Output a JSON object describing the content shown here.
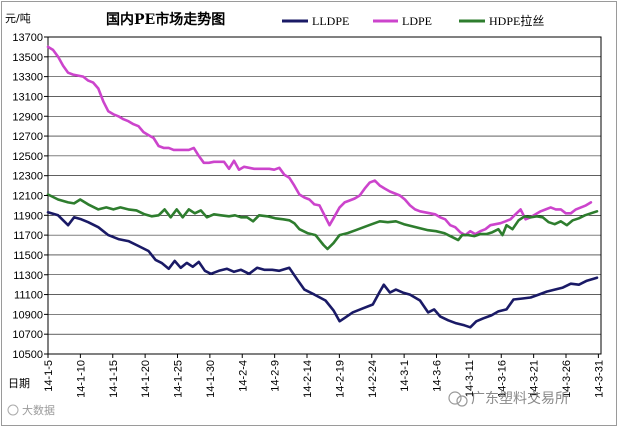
{
  "chart_data": {
    "type": "line",
    "title": "国内PE市场走势图",
    "ylabel": "元/吨",
    "xlabel": "日期",
    "ylim": [
      10500,
      13700
    ],
    "yticks": [
      10500,
      10700,
      10900,
      11100,
      11300,
      11500,
      11700,
      11900,
      12100,
      12300,
      12500,
      12700,
      12900,
      13100,
      13300,
      13500,
      13700
    ],
    "x_range": [
      0,
      55
    ],
    "xtick_labels": [
      "14-1-5",
      "14-1-10",
      "14-1-15",
      "14-1-20",
      "14-1-25",
      "14-1-30",
      "14-2-4",
      "14-2-9",
      "14-2-14",
      "14-2-19",
      "14-2-24",
      "14-3-1",
      "14-3-6",
      "14-3-11",
      "14-3-16",
      "14-3-21",
      "14-3-26",
      "14-3-31"
    ],
    "xtick_positions": [
      0,
      3.22,
      6.44,
      9.66,
      12.88,
      16.1,
      19.32,
      22.54,
      25.76,
      28.98,
      32.2,
      35.42,
      38.64,
      41.86,
      45.08,
      48.3,
      51.52,
      54.74
    ],
    "grid": true,
    "legend_position": "top",
    "series": [
      {
        "name": "LLDPE",
        "color": "#1a1a66",
        "points": [
          [
            0,
            11930
          ],
          [
            1,
            11900
          ],
          [
            2,
            11800
          ],
          [
            2.6,
            11880
          ],
          [
            3.3,
            11860
          ],
          [
            4,
            11830
          ],
          [
            5,
            11780
          ],
          [
            6,
            11700
          ],
          [
            7,
            11660
          ],
          [
            8,
            11640
          ],
          [
            9,
            11590
          ],
          [
            10,
            11540
          ],
          [
            10.7,
            11450
          ],
          [
            11.3,
            11420
          ],
          [
            12,
            11360
          ],
          [
            12.6,
            11440
          ],
          [
            13.2,
            11370
          ],
          [
            13.8,
            11420
          ],
          [
            14.4,
            11380
          ],
          [
            15,
            11430
          ],
          [
            15.6,
            11340
          ],
          [
            16.2,
            11310
          ],
          [
            17,
            11340
          ],
          [
            17.8,
            11360
          ],
          [
            18.5,
            11330
          ],
          [
            19.2,
            11350
          ],
          [
            20,
            11310
          ],
          [
            20.8,
            11370
          ],
          [
            21.5,
            11350
          ],
          [
            22.3,
            11350
          ],
          [
            23,
            11340
          ],
          [
            24,
            11370
          ],
          [
            24.8,
            11250
          ],
          [
            25.5,
            11150
          ],
          [
            26.5,
            11100
          ],
          [
            27.6,
            11040
          ],
          [
            28.4,
            10940
          ],
          [
            29,
            10830
          ],
          [
            29.6,
            10870
          ],
          [
            30.3,
            10920
          ],
          [
            31.3,
            10960
          ],
          [
            32.3,
            11000
          ],
          [
            33,
            11130
          ],
          [
            33.4,
            11200
          ],
          [
            34,
            11120
          ],
          [
            34.6,
            11150
          ],
          [
            35.3,
            11120
          ],
          [
            36,
            11100
          ],
          [
            37,
            11040
          ],
          [
            37.8,
            10920
          ],
          [
            38.4,
            10950
          ],
          [
            39,
            10880
          ],
          [
            39.8,
            10840
          ],
          [
            40.6,
            10810
          ],
          [
            41.4,
            10790
          ],
          [
            42,
            10770
          ],
          [
            42.6,
            10830
          ],
          [
            43.3,
            10860
          ],
          [
            44.1,
            10890
          ],
          [
            44.8,
            10930
          ],
          [
            45.6,
            10950
          ],
          [
            46.3,
            11050
          ],
          [
            47.2,
            11060
          ],
          [
            48,
            11070
          ],
          [
            48.8,
            11100
          ],
          [
            49.6,
            11130
          ],
          [
            50.4,
            11150
          ],
          [
            51.2,
            11170
          ],
          [
            52,
            11210
          ],
          [
            52.8,
            11200
          ],
          [
            53.6,
            11240
          ],
          [
            54.6,
            11270
          ]
        ]
      },
      {
        "name": "LDPE",
        "color": "#cc44cc",
        "points": [
          [
            0,
            13600
          ],
          [
            0.5,
            13570
          ],
          [
            1,
            13500
          ],
          [
            1.5,
            13410
          ],
          [
            2,
            13340
          ],
          [
            2.5,
            13320
          ],
          [
            3,
            13310
          ],
          [
            3.5,
            13300
          ],
          [
            4,
            13260
          ],
          [
            4.5,
            13240
          ],
          [
            5,
            13180
          ],
          [
            5.5,
            13050
          ],
          [
            6,
            12950
          ],
          [
            6.5,
            12920
          ],
          [
            7,
            12900
          ],
          [
            7.5,
            12870
          ],
          [
            8,
            12850
          ],
          [
            8.5,
            12820
          ],
          [
            9,
            12800
          ],
          [
            9.5,
            12740
          ],
          [
            10,
            12710
          ],
          [
            10.5,
            12680
          ],
          [
            11,
            12600
          ],
          [
            11.5,
            12580
          ],
          [
            12,
            12580
          ],
          [
            12.5,
            12560
          ],
          [
            13,
            12560
          ],
          [
            13.5,
            12560
          ],
          [
            14,
            12560
          ],
          [
            14.5,
            12580
          ],
          [
            15,
            12500
          ],
          [
            15.5,
            12430
          ],
          [
            16,
            12430
          ],
          [
            16.5,
            12440
          ],
          [
            17,
            12440
          ],
          [
            17.5,
            12440
          ],
          [
            18,
            12370
          ],
          [
            18.5,
            12450
          ],
          [
            19,
            12360
          ],
          [
            19.5,
            12390
          ],
          [
            20,
            12380
          ],
          [
            20.5,
            12370
          ],
          [
            21,
            12370
          ],
          [
            21.5,
            12370
          ],
          [
            22,
            12370
          ],
          [
            22.5,
            12360
          ],
          [
            23,
            12380
          ],
          [
            23.5,
            12310
          ],
          [
            24,
            12280
          ],
          [
            24.5,
            12200
          ],
          [
            25,
            12110
          ],
          [
            25.5,
            12080
          ],
          [
            26,
            12060
          ],
          [
            26.5,
            12010
          ],
          [
            27,
            12000
          ],
          [
            27.5,
            11900
          ],
          [
            28,
            11800
          ],
          [
            28.5,
            11890
          ],
          [
            29,
            11980
          ],
          [
            29.5,
            12030
          ],
          [
            30,
            12050
          ],
          [
            30.5,
            12070
          ],
          [
            31,
            12100
          ],
          [
            31.5,
            12170
          ],
          [
            32,
            12230
          ],
          [
            32.5,
            12250
          ],
          [
            33,
            12200
          ],
          [
            33.5,
            12170
          ],
          [
            34,
            12140
          ],
          [
            34.5,
            12120
          ],
          [
            35,
            12100
          ],
          [
            35.5,
            12060
          ],
          [
            36,
            12000
          ],
          [
            36.5,
            11960
          ],
          [
            37,
            11940
          ],
          [
            37.5,
            11930
          ],
          [
            38,
            11920
          ],
          [
            38.5,
            11910
          ],
          [
            39,
            11880
          ],
          [
            39.5,
            11860
          ],
          [
            40,
            11800
          ],
          [
            40.5,
            11780
          ],
          [
            41,
            11730
          ],
          [
            41.5,
            11700
          ],
          [
            42,
            11740
          ],
          [
            42.5,
            11710
          ],
          [
            43,
            11740
          ],
          [
            43.5,
            11760
          ],
          [
            44,
            11800
          ],
          [
            44.5,
            11810
          ],
          [
            45,
            11820
          ],
          [
            45.5,
            11840
          ],
          [
            46,
            11860
          ],
          [
            46.5,
            11910
          ],
          [
            47,
            11960
          ],
          [
            47.5,
            11860
          ],
          [
            48,
            11880
          ],
          [
            48.5,
            11910
          ],
          [
            49,
            11940
          ],
          [
            49.5,
            11960
          ],
          [
            50,
            11980
          ],
          [
            50.5,
            11960
          ],
          [
            51,
            11960
          ],
          [
            51.5,
            11920
          ],
          [
            52,
            11920
          ],
          [
            52.5,
            11960
          ],
          [
            53,
            11980
          ],
          [
            53.5,
            12000
          ],
          [
            54,
            12030
          ]
        ]
      },
      {
        "name": "HDPE拉丝",
        "color": "#2e7d2e",
        "points": [
          [
            0,
            12110
          ],
          [
            1,
            12060
          ],
          [
            2,
            12030
          ],
          [
            2.6,
            12020
          ],
          [
            3.2,
            12060
          ],
          [
            4,
            12010
          ],
          [
            5,
            11960
          ],
          [
            5.8,
            11980
          ],
          [
            6.5,
            11960
          ],
          [
            7.2,
            11980
          ],
          [
            8,
            11960
          ],
          [
            8.8,
            11950
          ],
          [
            9.6,
            11910
          ],
          [
            10.3,
            11890
          ],
          [
            11,
            11900
          ],
          [
            11.6,
            11960
          ],
          [
            12.2,
            11880
          ],
          [
            12.8,
            11960
          ],
          [
            13.4,
            11880
          ],
          [
            14,
            11960
          ],
          [
            14.6,
            11920
          ],
          [
            15.2,
            11950
          ],
          [
            15.8,
            11880
          ],
          [
            16.5,
            11910
          ],
          [
            17.2,
            11900
          ],
          [
            18,
            11890
          ],
          [
            18.6,
            11900
          ],
          [
            19.2,
            11880
          ],
          [
            19.8,
            11880
          ],
          [
            20.4,
            11840
          ],
          [
            21,
            11900
          ],
          [
            21.8,
            11890
          ],
          [
            22.6,
            11870
          ],
          [
            23.4,
            11860
          ],
          [
            24,
            11850
          ],
          [
            24.5,
            11820
          ],
          [
            25,
            11760
          ],
          [
            25.8,
            11720
          ],
          [
            26.6,
            11700
          ],
          [
            27.4,
            11600
          ],
          [
            27.8,
            11560
          ],
          [
            28.4,
            11620
          ],
          [
            29,
            11700
          ],
          [
            29.8,
            11720
          ],
          [
            30.6,
            11750
          ],
          [
            31.4,
            11780
          ],
          [
            32.2,
            11810
          ],
          [
            33,
            11840
          ],
          [
            33.8,
            11830
          ],
          [
            34.6,
            11840
          ],
          [
            35.4,
            11810
          ],
          [
            36.2,
            11790
          ],
          [
            37,
            11770
          ],
          [
            37.8,
            11750
          ],
          [
            38.6,
            11740
          ],
          [
            39.4,
            11720
          ],
          [
            40.2,
            11680
          ],
          [
            40.8,
            11650
          ],
          [
            41.2,
            11700
          ],
          [
            41.8,
            11700
          ],
          [
            42.4,
            11690
          ],
          [
            43,
            11710
          ],
          [
            43.6,
            11710
          ],
          [
            44.2,
            11730
          ],
          [
            44.8,
            11760
          ],
          [
            45.2,
            11700
          ],
          [
            45.6,
            11800
          ],
          [
            46.2,
            11760
          ],
          [
            46.8,
            11850
          ],
          [
            47.4,
            11890
          ],
          [
            48,
            11880
          ],
          [
            48.6,
            11890
          ],
          [
            49.2,
            11880
          ],
          [
            49.8,
            11830
          ],
          [
            50.4,
            11810
          ],
          [
            51,
            11840
          ],
          [
            51.6,
            11800
          ],
          [
            52.2,
            11850
          ],
          [
            52.8,
            11870
          ],
          [
            53.4,
            11900
          ],
          [
            54,
            11920
          ],
          [
            54.6,
            11940
          ]
        ]
      }
    ]
  },
  "watermarks": {
    "bottom_left": "大数据",
    "bottom_right": "广东塑料交易所"
  }
}
